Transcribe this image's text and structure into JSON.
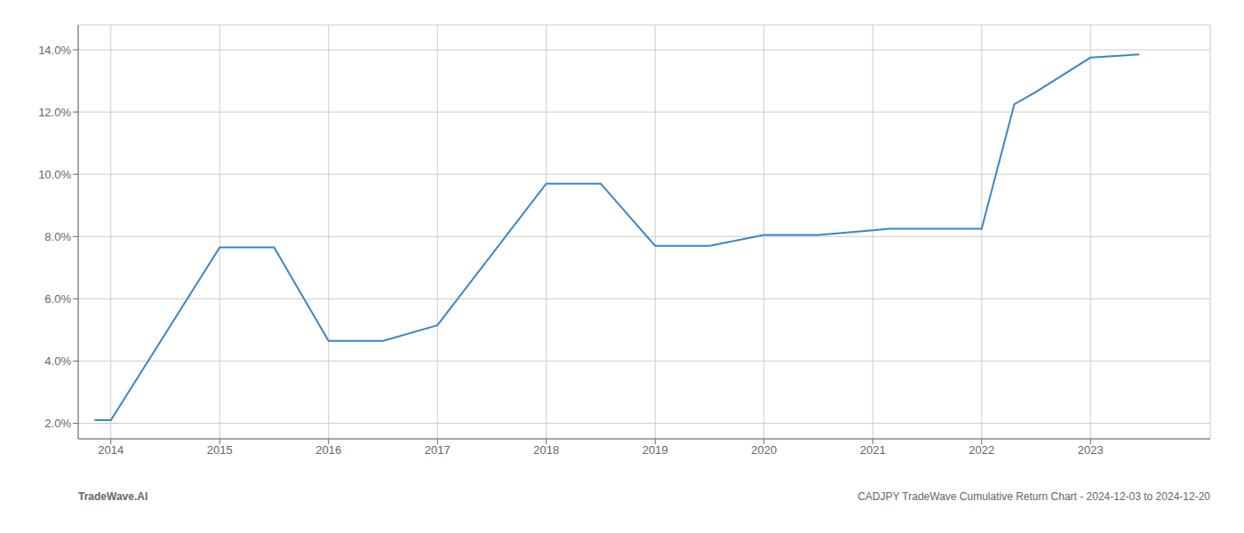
{
  "chart_data": {
    "type": "line",
    "x": [
      2013.85,
      2014.0,
      2015.0,
      2015.5,
      2016.0,
      2016.5,
      2017.0,
      2018.0,
      2018.5,
      2019.0,
      2019.5,
      2020.0,
      2020.5,
      2021.0,
      2021.15,
      2021.5,
      2022.0,
      2022.3,
      2022.5,
      2023.0,
      2023.45
    ],
    "values": [
      2.1,
      2.1,
      7.65,
      7.65,
      4.65,
      4.65,
      5.15,
      9.7,
      9.7,
      7.7,
      7.7,
      8.05,
      8.05,
      8.2,
      8.25,
      8.25,
      8.25,
      12.25,
      12.65,
      13.75,
      13.85
    ],
    "color": "#3a86c8",
    "xlim": [
      2013.7,
      2024.1
    ],
    "ylim": [
      1.5,
      14.8
    ],
    "xticks": [
      2014,
      2015,
      2016,
      2017,
      2018,
      2019,
      2020,
      2021,
      2022,
      2023
    ],
    "yticks": [
      {
        "value": 2.0,
        "label": "2.0%"
      },
      {
        "value": 4.0,
        "label": "4.0%"
      },
      {
        "value": 6.0,
        "label": "6.0%"
      },
      {
        "value": 8.0,
        "label": "8.0%"
      },
      {
        "value": 10.0,
        "label": "10.0%"
      },
      {
        "value": 12.0,
        "label": "12.0%"
      },
      {
        "value": 14.0,
        "label": "14.0%"
      }
    ],
    "grid": true,
    "annotations": [
      "TradeWave.AI",
      "CADJPY TradeWave Cumulative Return Chart - 2024-12-03 to 2024-12-20"
    ]
  }
}
